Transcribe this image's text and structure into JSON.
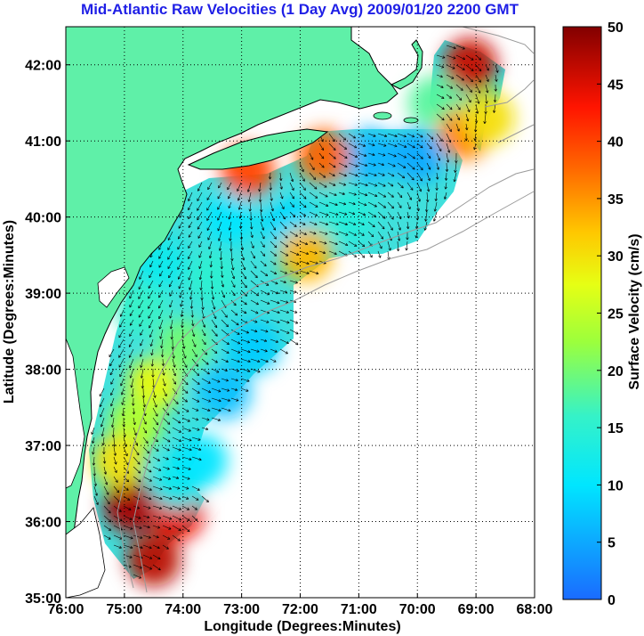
{
  "chart_data": {
    "type": "heatmap",
    "title": "Mid-Atlantic Raw Velocities (1 Day Avg) 2009/01/20 2200 GMT",
    "xlabel": "Longitude (Degrees:Minutes)",
    "ylabel": "Latitude (Degrees:Minutes)",
    "colorbar_label": "Surface Velocity (cm/s)",
    "xlim": [
      -76,
      -68
    ],
    "ylim": [
      35,
      42.5
    ],
    "x_ticks": [
      {
        "value": -76,
        "label": "76:00"
      },
      {
        "value": -75,
        "label": "75:00"
      },
      {
        "value": -74,
        "label": "74:00"
      },
      {
        "value": -73,
        "label": "73:00"
      },
      {
        "value": -72,
        "label": "72:00"
      },
      {
        "value": -71,
        "label": "71:00"
      },
      {
        "value": -70,
        "label": "70:00"
      },
      {
        "value": -69,
        "label": "69:00"
      },
      {
        "value": -68,
        "label": "68:00"
      }
    ],
    "y_ticks": [
      {
        "value": 35,
        "label": "35:00"
      },
      {
        "value": 36,
        "label": "36:00"
      },
      {
        "value": 37,
        "label": "37:00"
      },
      {
        "value": 38,
        "label": "38:00"
      },
      {
        "value": 39,
        "label": "39:00"
      },
      {
        "value": 40,
        "label": "40:00"
      },
      {
        "value": 41,
        "label": "41:00"
      },
      {
        "value": 42,
        "label": "42:00"
      }
    ],
    "colorbar_range": [
      0,
      50
    ],
    "colorbar_ticks": [
      {
        "value": 0,
        "label": "0"
      },
      {
        "value": 5,
        "label": "5"
      },
      {
        "value": 10,
        "label": "10"
      },
      {
        "value": 15,
        "label": "15"
      },
      {
        "value": 20,
        "label": "20"
      },
      {
        "value": 25,
        "label": "25"
      },
      {
        "value": 30,
        "label": "30"
      },
      {
        "value": 35,
        "label": "35"
      },
      {
        "value": 40,
        "label": "40"
      },
      {
        "value": 45,
        "label": "45"
      },
      {
        "value": 50,
        "label": "50"
      }
    ],
    "grid": "dotted",
    "colormap": "jet",
    "colors": {
      "land": "#5ff0a8",
      "coast": "#000000",
      "bathymetry": "#9a9a9a",
      "title": "#1f1fe6"
    },
    "velocity_regions": [
      {
        "lon": -74.5,
        "lat": 37.8,
        "speed": 28
      },
      {
        "lon": -74.8,
        "lat": 37.3,
        "speed": 24
      },
      {
        "lon": -74.0,
        "lat": 38.3,
        "speed": 20
      },
      {
        "lon": -74.7,
        "lat": 38.8,
        "speed": 16
      },
      {
        "lon": -74.4,
        "lat": 39.4,
        "speed": 12
      },
      {
        "lon": -73.5,
        "lat": 39.2,
        "speed": 15
      },
      {
        "lon": -72.8,
        "lat": 38.3,
        "speed": 8
      },
      {
        "lon": -73.3,
        "lat": 37.7,
        "speed": 7
      },
      {
        "lon": -73.2,
        "lat": 40.0,
        "speed": 10
      },
      {
        "lon": -72.2,
        "lat": 39.9,
        "speed": 9
      },
      {
        "lon": -71.2,
        "lat": 40.0,
        "speed": 14
      },
      {
        "lon": -70.8,
        "lat": 40.8,
        "speed": 6
      },
      {
        "lon": -70.0,
        "lat": 40.8,
        "speed": 5
      },
      {
        "lon": -71.6,
        "lat": 40.8,
        "speed": 38
      },
      {
        "lon": -72.9,
        "lat": 40.6,
        "speed": 40
      },
      {
        "lon": -71.9,
        "lat": 39.5,
        "speed": 33
      },
      {
        "lon": -74.9,
        "lat": 36.2,
        "speed": 48
      },
      {
        "lon": -74.5,
        "lat": 35.5,
        "speed": 47
      },
      {
        "lon": -74.1,
        "lat": 36.1,
        "speed": 44
      },
      {
        "lon": -74.1,
        "lat": 36.5,
        "speed": 12
      },
      {
        "lon": -73.7,
        "lat": 36.8,
        "speed": 10
      },
      {
        "lon": -75.1,
        "lat": 36.8,
        "speed": 30
      },
      {
        "lon": -69.1,
        "lat": 42.0,
        "speed": 46
      },
      {
        "lon": -69.7,
        "lat": 41.5,
        "speed": 18
      },
      {
        "lon": -69.2,
        "lat": 41.1,
        "speed": 36
      },
      {
        "lon": -68.8,
        "lat": 41.3,
        "speed": 30
      }
    ]
  }
}
